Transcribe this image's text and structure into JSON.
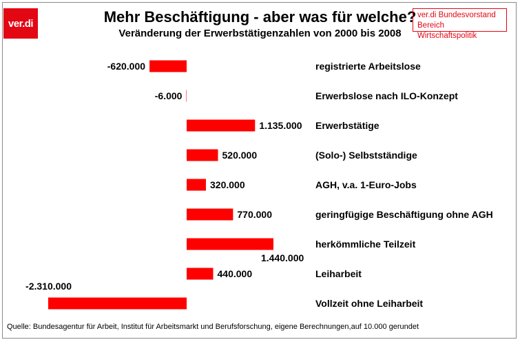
{
  "logo_text": "ver.di",
  "org": {
    "line1": "ver.di Bundesvorstand",
    "line2": "Bereich Wirtschaftspolitik"
  },
  "source": "Quelle: Bundesagentur für Arbeit, Institut für Arbeitsmarkt und Berufsforschung,  eigene Berechnungen,auf 10.000 gerundet",
  "colors": {
    "bar": "#ff0000",
    "brand": "#e30613"
  },
  "chart_data": {
    "type": "bar",
    "orientation": "horizontal",
    "title": "Mehr Beschäftigung - aber was für welche?",
    "subtitle": "Veränderung der Erwerbstätigenzahlen von 2000 bis 2008",
    "categories": [
      "registrierte Arbeitslose",
      "Erwerbslose nach ILO-Konzept",
      "Erwerbstätige",
      "(Solo-) Selbstständige",
      "AGH, v.a. 1-Euro-Jobs",
      "geringfügige Beschäftigung ohne AGH",
      "herkömmliche Teilzeit",
      "Leiharbeit",
      "Vollzeit ohne Leiharbeit"
    ],
    "values": [
      -620000,
      -6000,
      1135000,
      520000,
      320000,
      770000,
      1440000,
      440000,
      -2310000
    ],
    "value_labels": [
      "-620.000",
      "-6.000",
      "1.135.000",
      "520.000",
      "320.000",
      "770.000",
      "1.440.000",
      "440.000",
      "-2.310.000"
    ],
    "xlim": [
      -2310000,
      1440000
    ],
    "grid": false,
    "legend": "none"
  }
}
